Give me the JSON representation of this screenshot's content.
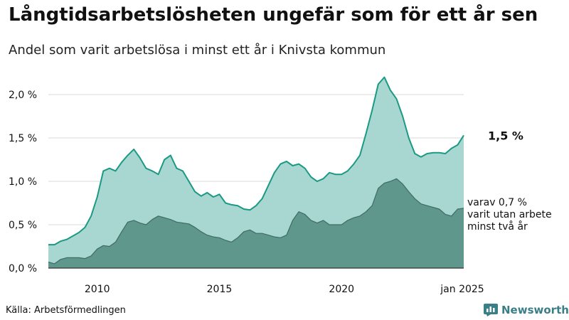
{
  "chart_data": {
    "type": "area",
    "title": "Långtidsarbetslösheten ungefär som för ett år sen",
    "subtitle": "Andel som varit arbetslösa i minst ett år i Knivsta kommun",
    "y_unit": "%",
    "ylim": [
      0,
      2.2
    ],
    "yticks": [
      0.0,
      0.5,
      1.0,
      1.5,
      2.0
    ],
    "ytick_labels": [
      "0,0 %",
      "0,5 %",
      "1,0 %",
      "1,5 %",
      "2,0 %"
    ],
    "xticks": [
      2010,
      2015,
      2020,
      2025
    ],
    "xtick_labels": [
      "2010",
      "2015",
      "2020",
      "jan 2025"
    ],
    "grid": true,
    "series": [
      {
        "color": "#a8d6d0",
        "line_color": "#1a9a84",
        "end_label": "1,5 %",
        "points": [
          [
            2008.0,
            0.27
          ],
          [
            2008.25,
            0.27
          ],
          [
            2008.5,
            0.31
          ],
          [
            2008.75,
            0.33
          ],
          [
            2009.0,
            0.37
          ],
          [
            2009.25,
            0.41
          ],
          [
            2009.5,
            0.47
          ],
          [
            2009.75,
            0.6
          ],
          [
            2010.0,
            0.82
          ],
          [
            2010.25,
            1.12
          ],
          [
            2010.5,
            1.15
          ],
          [
            2010.75,
            1.12
          ],
          [
            2011.0,
            1.22
          ],
          [
            2011.25,
            1.3
          ],
          [
            2011.5,
            1.37
          ],
          [
            2011.75,
            1.27
          ],
          [
            2012.0,
            1.15
          ],
          [
            2012.25,
            1.12
          ],
          [
            2012.5,
            1.08
          ],
          [
            2012.75,
            1.25
          ],
          [
            2013.0,
            1.3
          ],
          [
            2013.25,
            1.15
          ],
          [
            2013.5,
            1.12
          ],
          [
            2013.75,
            1.0
          ],
          [
            2014.0,
            0.88
          ],
          [
            2014.25,
            0.83
          ],
          [
            2014.5,
            0.87
          ],
          [
            2014.75,
            0.82
          ],
          [
            2015.0,
            0.85
          ],
          [
            2015.25,
            0.75
          ],
          [
            2015.5,
            0.73
          ],
          [
            2015.75,
            0.72
          ],
          [
            2016.0,
            0.68
          ],
          [
            2016.25,
            0.67
          ],
          [
            2016.5,
            0.72
          ],
          [
            2016.75,
            0.8
          ],
          [
            2017.0,
            0.95
          ],
          [
            2017.25,
            1.1
          ],
          [
            2017.5,
            1.2
          ],
          [
            2017.75,
            1.23
          ],
          [
            2018.0,
            1.18
          ],
          [
            2018.25,
            1.2
          ],
          [
            2018.5,
            1.15
          ],
          [
            2018.75,
            1.05
          ],
          [
            2019.0,
            1.0
          ],
          [
            2019.25,
            1.03
          ],
          [
            2019.5,
            1.1
          ],
          [
            2019.75,
            1.08
          ],
          [
            2020.0,
            1.08
          ],
          [
            2020.25,
            1.12
          ],
          [
            2020.5,
            1.2
          ],
          [
            2020.75,
            1.3
          ],
          [
            2021.0,
            1.55
          ],
          [
            2021.25,
            1.82
          ],
          [
            2021.5,
            2.12
          ],
          [
            2021.75,
            2.2
          ],
          [
            2022.0,
            2.05
          ],
          [
            2022.25,
            1.95
          ],
          [
            2022.5,
            1.75
          ],
          [
            2022.75,
            1.5
          ],
          [
            2023.0,
            1.32
          ],
          [
            2023.25,
            1.28
          ],
          [
            2023.5,
            1.32
          ],
          [
            2023.75,
            1.33
          ],
          [
            2024.0,
            1.33
          ],
          [
            2024.25,
            1.32
          ],
          [
            2024.5,
            1.38
          ],
          [
            2024.75,
            1.42
          ],
          [
            2025.0,
            1.53
          ]
        ]
      },
      {
        "color": "#5f978c",
        "line_color": "#3d6d64",
        "end_label": "varav 0,7 %\nvarit utan arbete\nminst två år",
        "points": [
          [
            2008.0,
            0.07
          ],
          [
            2008.25,
            0.05
          ],
          [
            2008.5,
            0.1
          ],
          [
            2008.75,
            0.12
          ],
          [
            2009.0,
            0.12
          ],
          [
            2009.25,
            0.12
          ],
          [
            2009.5,
            0.11
          ],
          [
            2009.75,
            0.14
          ],
          [
            2010.0,
            0.22
          ],
          [
            2010.25,
            0.26
          ],
          [
            2010.5,
            0.25
          ],
          [
            2010.75,
            0.3
          ],
          [
            2011.0,
            0.42
          ],
          [
            2011.25,
            0.53
          ],
          [
            2011.5,
            0.55
          ],
          [
            2011.75,
            0.52
          ],
          [
            2012.0,
            0.5
          ],
          [
            2012.25,
            0.56
          ],
          [
            2012.5,
            0.6
          ],
          [
            2012.75,
            0.58
          ],
          [
            2013.0,
            0.56
          ],
          [
            2013.25,
            0.53
          ],
          [
            2013.5,
            0.52
          ],
          [
            2013.75,
            0.51
          ],
          [
            2014.0,
            0.47
          ],
          [
            2014.25,
            0.42
          ],
          [
            2014.5,
            0.38
          ],
          [
            2014.75,
            0.36
          ],
          [
            2015.0,
            0.35
          ],
          [
            2015.25,
            0.32
          ],
          [
            2015.5,
            0.3
          ],
          [
            2015.75,
            0.35
          ],
          [
            2016.0,
            0.42
          ],
          [
            2016.25,
            0.44
          ],
          [
            2016.5,
            0.4
          ],
          [
            2016.75,
            0.4
          ],
          [
            2017.0,
            0.38
          ],
          [
            2017.25,
            0.36
          ],
          [
            2017.5,
            0.35
          ],
          [
            2017.75,
            0.38
          ],
          [
            2018.0,
            0.55
          ],
          [
            2018.25,
            0.65
          ],
          [
            2018.5,
            0.62
          ],
          [
            2018.75,
            0.55
          ],
          [
            2019.0,
            0.52
          ],
          [
            2019.25,
            0.55
          ],
          [
            2019.5,
            0.5
          ],
          [
            2019.75,
            0.5
          ],
          [
            2020.0,
            0.5
          ],
          [
            2020.25,
            0.55
          ],
          [
            2020.5,
            0.58
          ],
          [
            2020.75,
            0.6
          ],
          [
            2021.0,
            0.65
          ],
          [
            2021.25,
            0.72
          ],
          [
            2021.5,
            0.92
          ],
          [
            2021.75,
            0.98
          ],
          [
            2022.0,
            1.0
          ],
          [
            2022.25,
            1.03
          ],
          [
            2022.5,
            0.97
          ],
          [
            2022.75,
            0.88
          ],
          [
            2023.0,
            0.8
          ],
          [
            2023.25,
            0.74
          ],
          [
            2023.5,
            0.72
          ],
          [
            2023.75,
            0.7
          ],
          [
            2024.0,
            0.68
          ],
          [
            2024.25,
            0.62
          ],
          [
            2024.5,
            0.6
          ],
          [
            2024.75,
            0.68
          ],
          [
            2025.0,
            0.69
          ]
        ]
      }
    ]
  },
  "source": "Källa: Arbetsförmedlingen",
  "brand": "Newsworthy"
}
